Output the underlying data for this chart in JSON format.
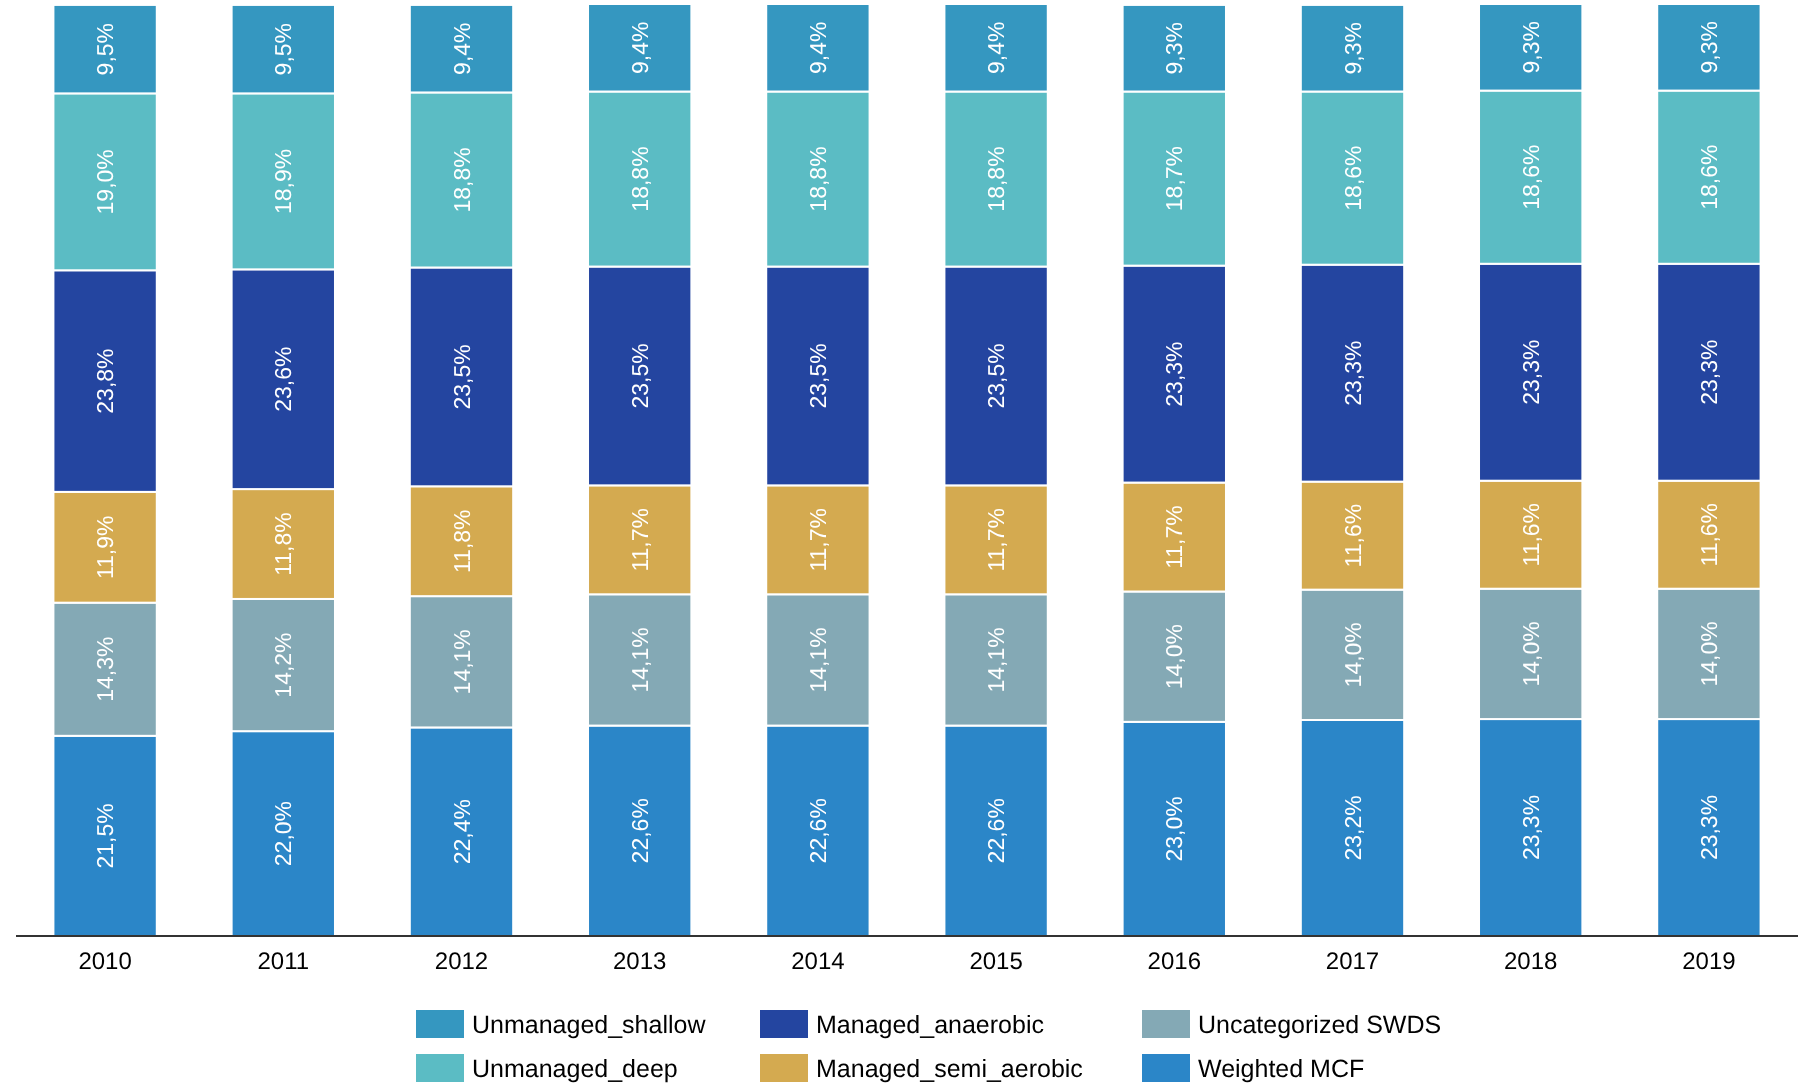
{
  "chart_data": {
    "type": "bar",
    "stacked": true,
    "data_labels": true,
    "legend": "bottom",
    "categories": [
      "2010",
      "2011",
      "2012",
      "2013",
      "2014",
      "2015",
      "2016",
      "2017",
      "2018",
      "2019"
    ],
    "series": [
      {
        "name": "Weighted MCF",
        "color": "#2b86c8",
        "values": [
          21.5,
          22.0,
          22.4,
          22.6,
          22.6,
          22.6,
          23.0,
          23.2,
          23.3,
          23.3
        ],
        "value_labels": [
          "21,5%",
          "22,0%",
          "22,4%",
          "22,6%",
          "22,6%",
          "22,6%",
          "23,0%",
          "23,2%",
          "23,3%",
          "23,3%"
        ]
      },
      {
        "name": "Uncategorized SWDS",
        "color": "#84a9b5",
        "values": [
          14.3,
          14.2,
          14.1,
          14.1,
          14.1,
          14.1,
          14.0,
          14.0,
          14.0,
          14.0
        ],
        "value_labels": [
          "14,3%",
          "14,2%",
          "14,1%",
          "14,1%",
          "14,1%",
          "14,1%",
          "14,0%",
          "14,0%",
          "14,0%",
          "14,0%"
        ]
      },
      {
        "name": "Managed_semi_aerobic",
        "color": "#d4aa50",
        "values": [
          11.9,
          11.8,
          11.8,
          11.7,
          11.7,
          11.7,
          11.7,
          11.6,
          11.6,
          11.6
        ],
        "value_labels": [
          "11,9%",
          "11,8%",
          "11,8%",
          "11,7%",
          "11,7%",
          "11,7%",
          "11,7%",
          "11,6%",
          "11,6%",
          "11,6%"
        ]
      },
      {
        "name": "Managed_anaerobic",
        "color": "#2445a0",
        "values": [
          23.8,
          23.6,
          23.5,
          23.5,
          23.5,
          23.5,
          23.3,
          23.3,
          23.3,
          23.3
        ],
        "value_labels": [
          "23,8%",
          "23,6%",
          "23,5%",
          "23,5%",
          "23,5%",
          "23,5%",
          "23,3%",
          "23,3%",
          "23,3%",
          "23,3%"
        ]
      },
      {
        "name": "Unmanaged_deep",
        "color": "#5bbcc4",
        "values": [
          19.0,
          18.9,
          18.8,
          18.8,
          18.8,
          18.8,
          18.7,
          18.6,
          18.6,
          18.6
        ],
        "value_labels": [
          "19,0%",
          "18,9%",
          "18,8%",
          "18,8%",
          "18,8%",
          "18,8%",
          "18,7%",
          "18,6%",
          "18,6%",
          "18,6%"
        ]
      },
      {
        "name": "Unmanaged_shallow",
        "color": "#3597c0",
        "values": [
          9.5,
          9.5,
          9.4,
          9.4,
          9.4,
          9.4,
          9.3,
          9.3,
          9.3,
          9.3
        ],
        "value_labels": [
          "9,5%",
          "9,5%",
          "9,4%",
          "9,4%",
          "9,4%",
          "9,4%",
          "9,3%",
          "9,3%",
          "9,3%",
          "9,3%"
        ]
      }
    ]
  }
}
